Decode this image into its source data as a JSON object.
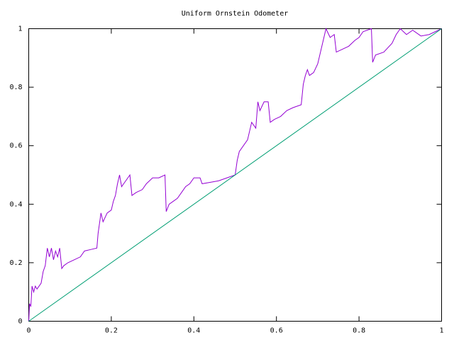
{
  "chart_data": {
    "type": "line",
    "title": "Uniform Ornstein Odometer",
    "series": [
      {
        "color": "#9400d3",
        "x": [
          0,
          0.002,
          0.005,
          0.008,
          0.012,
          0.016,
          0.02,
          0.025,
          0.03,
          0.035,
          0.04,
          0.045,
          0.05,
          0.055,
          0.06,
          0.065,
          0.07,
          0.075,
          0.08,
          0.085,
          0.095,
          0.11,
          0.125,
          0.135,
          0.15,
          0.165,
          0.168,
          0.175,
          0.18,
          0.19,
          0.2,
          0.205,
          0.21,
          0.215,
          0.22,
          0.225,
          0.235,
          0.245,
          0.25,
          0.26,
          0.275,
          0.285,
          0.3,
          0.315,
          0.33,
          0.333,
          0.34,
          0.35,
          0.36,
          0.37,
          0.38,
          0.39,
          0.4,
          0.415,
          0.42,
          0.44,
          0.46,
          0.48,
          0.5,
          0.505,
          0.51,
          0.52,
          0.53,
          0.54,
          0.55,
          0.555,
          0.56,
          0.57,
          0.58,
          0.585,
          0.595,
          0.61,
          0.625,
          0.64,
          0.66,
          0.665,
          0.67,
          0.675,
          0.68,
          0.69,
          0.7,
          0.71,
          0.72,
          0.73,
          0.74,
          0.745,
          0.76,
          0.775,
          0.79,
          0.8,
          0.81,
          0.83,
          0.833,
          0.84,
          0.86,
          0.88,
          0.89,
          0.9,
          0.915,
          0.93,
          0.95,
          0.97,
          0.985,
          1
        ],
        "values": [
          0,
          0.06,
          0.05,
          0.12,
          0.1,
          0.12,
          0.11,
          0.12,
          0.13,
          0.17,
          0.19,
          0.25,
          0.22,
          0.25,
          0.21,
          0.24,
          0.22,
          0.25,
          0.18,
          0.19,
          0.2,
          0.21,
          0.22,
          0.24,
          0.245,
          0.25,
          0.3,
          0.37,
          0.34,
          0.37,
          0.38,
          0.41,
          0.43,
          0.47,
          0.5,
          0.46,
          0.48,
          0.5,
          0.43,
          0.44,
          0.45,
          0.47,
          0.49,
          0.49,
          0.5,
          0.375,
          0.4,
          0.41,
          0.42,
          0.44,
          0.46,
          0.47,
          0.49,
          0.49,
          0.47,
          0.475,
          0.48,
          0.49,
          0.5,
          0.55,
          0.58,
          0.6,
          0.62,
          0.68,
          0.66,
          0.75,
          0.72,
          0.75,
          0.75,
          0.68,
          0.69,
          0.7,
          0.72,
          0.73,
          0.74,
          0.81,
          0.84,
          0.86,
          0.84,
          0.85,
          0.88,
          0.94,
          1,
          0.97,
          0.98,
          0.92,
          0.93,
          0.94,
          0.96,
          0.97,
          0.99,
          1,
          0.885,
          0.91,
          0.92,
          0.95,
          0.98,
          1,
          0.98,
          0.995,
          0.975,
          0.98,
          0.99,
          1
        ]
      },
      {
        "color": "#009e73",
        "x": [
          0,
          1
        ],
        "values": [
          0,
          1
        ]
      }
    ],
    "xlim": [
      0,
      1
    ],
    "xticks": [
      0,
      0.2,
      0.4,
      0.6,
      0.8,
      1
    ],
    "ylim": [
      0,
      1
    ],
    "yticks": [
      0,
      0.2,
      0.4,
      0.6,
      0.8,
      1
    ],
    "grid": false
  }
}
